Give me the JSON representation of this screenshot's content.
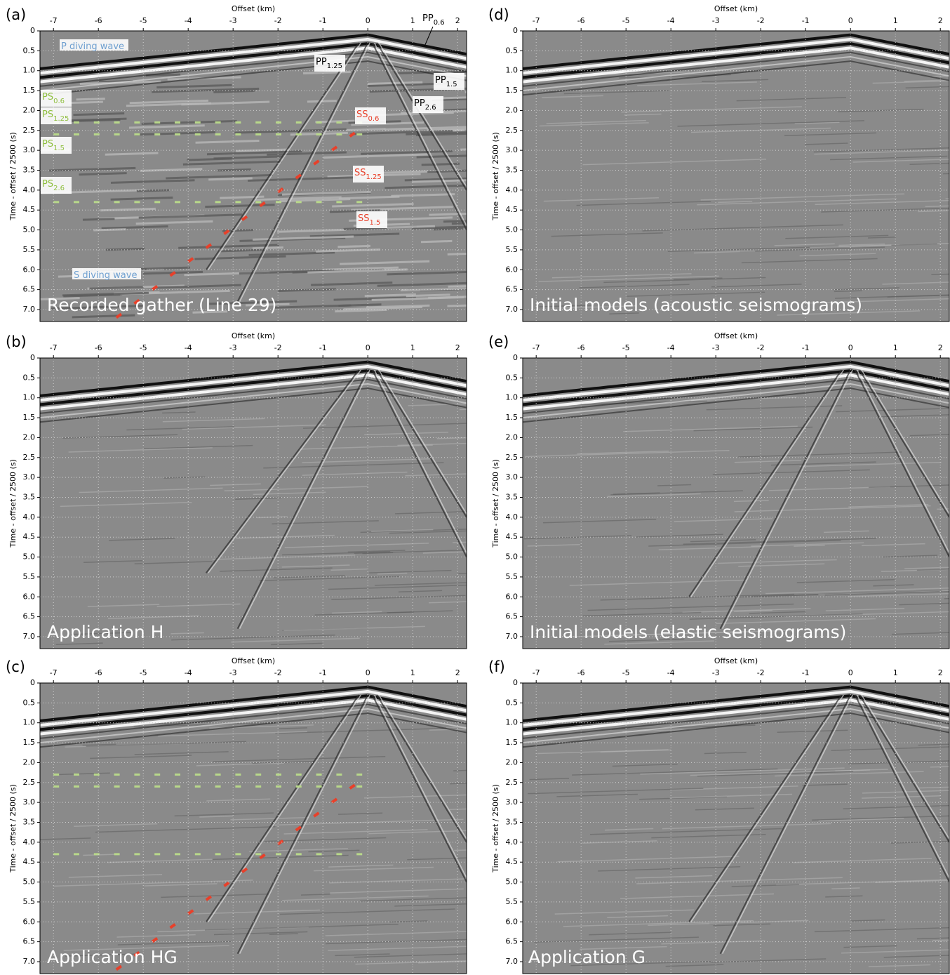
{
  "panels": [
    {
      "label": "(a)",
      "caption": "Recorded gather (Line 29)",
      "x_axis_title": "Offset (km)",
      "y_axis_title": "Time - offset / 2500 (s)",
      "xlim": [
        -7.3,
        2.2
      ],
      "ylim": [
        0,
        7.3
      ],
      "xticks": [
        -7,
        -6,
        -5,
        -4,
        -3,
        -2,
        -1,
        0,
        1,
        2
      ],
      "yticks": [
        0,
        0.5,
        {
          "value": 1,
          "label": "1.0"
        },
        1.5,
        {
          "value": 2,
          "label": "2.0"
        },
        2.5,
        {
          "value": 3,
          "label": "3.0"
        },
        3.5,
        {
          "value": 4,
          "label": "4.0"
        },
        4.5,
        {
          "value": 5,
          "label": "5.0"
        },
        5.5,
        {
          "value": 6,
          "label": "6.0"
        },
        6.5,
        {
          "value": 7,
          "label": "7.0"
        }
      ],
      "annotations": [
        {
          "text": "P diving wave"
        },
        {
          "text": "PP",
          "sub": "0.6"
        },
        {
          "text": "PP",
          "sub": "1.25"
        },
        {
          "text": "PP",
          "sub": "1.5"
        },
        {
          "text": "PP",
          "sub": "2.6"
        },
        {
          "text": "PS",
          "sub": "0.6"
        },
        {
          "text": "PS",
          "sub": "1.25"
        },
        {
          "text": "PS",
          "sub": "1.5"
        },
        {
          "text": "PS",
          "sub": "2.6"
        },
        {
          "text": "SS",
          "sub": "0.6"
        },
        {
          "text": "SS",
          "sub": "1.25"
        },
        {
          "text": "SS",
          "sub": "1.5"
        },
        {
          "text": "S diving wave"
        }
      ]
    },
    {
      "label": "(b)",
      "caption": "Application H",
      "x_axis_title": "Offset (km)",
      "y_axis_title": "Time - offset / 2500 (s)",
      "xlim": [
        -7.3,
        2.2
      ],
      "ylim": [
        0,
        7.3
      ],
      "xticks": [
        -7,
        -6,
        -5,
        -4,
        -3,
        -2,
        -1,
        0,
        1,
        2
      ],
      "yticks": [
        0,
        0.5,
        {
          "value": 1,
          "label": "1.0"
        },
        1.5,
        {
          "value": 2,
          "label": "2.0"
        },
        2.5,
        {
          "value": 3,
          "label": "3.0"
        },
        3.5,
        {
          "value": 4,
          "label": "4.0"
        },
        4.5,
        {
          "value": 5,
          "label": "5.0"
        },
        5.5,
        {
          "value": 6,
          "label": "6.0"
        },
        6.5,
        {
          "value": 7,
          "label": "7.0"
        }
      ]
    },
    {
      "label": "(c)",
      "caption": "Application HG",
      "x_axis_title": "Offset (km)",
      "y_axis_title": "Time - offset / 2500 (s)",
      "xlim": [
        -7.3,
        2.2
      ],
      "ylim": [
        0,
        7.3
      ],
      "xticks": [
        -7,
        -6,
        -5,
        -4,
        -3,
        -2,
        -1,
        0,
        1,
        2
      ],
      "yticks": [
        0,
        0.5,
        {
          "value": 1,
          "label": "1.0"
        },
        1.5,
        {
          "value": 2,
          "label": "2.0"
        },
        2.5,
        {
          "value": 3,
          "label": "3.0"
        },
        3.5,
        {
          "value": 4,
          "label": "4.0"
        },
        4.5,
        {
          "value": 5,
          "label": "5.0"
        },
        5.5,
        {
          "value": 6,
          "label": "6.0"
        },
        6.5,
        {
          "value": 7,
          "label": "7.0"
        }
      ]
    },
    {
      "label": "(d)",
      "caption": "Initial models (acoustic seismograms)",
      "x_axis_title": "Offset (km)",
      "y_axis_title": "Time - offset / 2500 (s)",
      "xlim": [
        -7.3,
        2.2
      ],
      "ylim": [
        0,
        7.3
      ],
      "xticks": [
        -7,
        -6,
        -5,
        -4,
        -3,
        -2,
        -1,
        0,
        1,
        2
      ],
      "yticks": [
        0,
        0.5,
        {
          "value": 1,
          "label": "1.0"
        },
        1.5,
        {
          "value": 2,
          "label": "2.0"
        },
        2.5,
        {
          "value": 3,
          "label": "3.0"
        },
        3.5,
        {
          "value": 4,
          "label": "4.0"
        },
        4.5,
        {
          "value": 5,
          "label": "5.0"
        },
        5.5,
        {
          "value": 6,
          "label": "6.0"
        },
        6.5,
        {
          "value": 7,
          "label": "7.0"
        }
      ]
    },
    {
      "label": "(e)",
      "caption": "Initial models (elastic seismograms)",
      "x_axis_title": "Offset (km)",
      "y_axis_title": "Time - offset / 2500 (s)",
      "xlim": [
        -7.3,
        2.2
      ],
      "ylim": [
        0,
        7.3
      ],
      "xticks": [
        -7,
        -6,
        -5,
        -4,
        -3,
        -2,
        -1,
        0,
        1,
        2
      ],
      "yticks": [
        0,
        0.5,
        {
          "value": 1,
          "label": "1.0"
        },
        1.5,
        {
          "value": 2,
          "label": "2.0"
        },
        2.5,
        {
          "value": 3,
          "label": "3.0"
        },
        3.5,
        {
          "value": 4,
          "label": "4.0"
        },
        4.5,
        {
          "value": 5,
          "label": "5.0"
        },
        5.5,
        {
          "value": 6,
          "label": "6.0"
        },
        6.5,
        {
          "value": 7,
          "label": "7.0"
        }
      ]
    },
    {
      "label": "(f)",
      "caption": "Application G",
      "x_axis_title": "Offset (km)",
      "y_axis_title": "Time - offset / 2500 (s)",
      "xlim": [
        -7.3,
        2.2
      ],
      "ylim": [
        0,
        7.3
      ],
      "xticks": [
        -7,
        -6,
        -5,
        -4,
        -3,
        -2,
        -1,
        0,
        1,
        2
      ],
      "yticks": [
        0,
        0.5,
        {
          "value": 1,
          "label": "1.0"
        },
        1.5,
        {
          "value": 2,
          "label": "2.0"
        },
        2.5,
        {
          "value": 3,
          "label": "3.0"
        },
        3.5,
        {
          "value": 4,
          "label": "4.0"
        },
        4.5,
        {
          "value": 5,
          "label": "5.0"
        },
        5.5,
        {
          "value": 6,
          "label": "6.0"
        },
        6.5,
        {
          "value": 7,
          "label": "7.0"
        }
      ]
    }
  ]
}
